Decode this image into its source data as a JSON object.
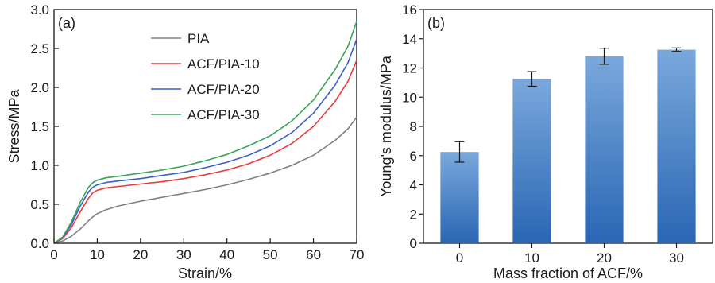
{
  "chart_data": [
    {
      "type": "line",
      "panel_label": "(a)",
      "title": "",
      "xlabel": "Strain/%",
      "ylabel": "Stress/MPa",
      "xlim": [
        0,
        70
      ],
      "ylim": [
        0,
        3.0
      ],
      "xticks": [
        0,
        10,
        20,
        30,
        40,
        50,
        60,
        70
      ],
      "yticks": [
        0.0,
        0.5,
        1.0,
        1.5,
        2.0,
        2.5,
        3.0
      ],
      "ytick_labels": [
        "0.0",
        "0.5",
        "1.0",
        "1.5",
        "2.0",
        "2.5",
        "3.0"
      ],
      "legend_position": "top-center",
      "grid": false,
      "series": [
        {
          "name": "PIA",
          "color": "#808080",
          "x": [
            0,
            2,
            4,
            6,
            8,
            9,
            10,
            12,
            15,
            20,
            25,
            30,
            35,
            40,
            45,
            50,
            55,
            60,
            65,
            68,
            70
          ],
          "y": [
            0,
            0.03,
            0.09,
            0.18,
            0.29,
            0.34,
            0.38,
            0.43,
            0.48,
            0.54,
            0.59,
            0.64,
            0.69,
            0.75,
            0.82,
            0.9,
            1.0,
            1.13,
            1.32,
            1.47,
            1.62
          ]
        },
        {
          "name": "ACF/PIA-10",
          "color": "#e83a3a",
          "x": [
            0,
            2,
            4,
            6,
            8,
            9,
            10,
            12,
            15,
            20,
            25,
            30,
            35,
            40,
            45,
            50,
            55,
            60,
            65,
            68,
            70
          ],
          "y": [
            0,
            0.06,
            0.2,
            0.4,
            0.58,
            0.65,
            0.68,
            0.71,
            0.73,
            0.76,
            0.79,
            0.83,
            0.88,
            0.94,
            1.02,
            1.13,
            1.28,
            1.5,
            1.82,
            2.08,
            2.35
          ]
        },
        {
          "name": "ACF/PIA-20",
          "color": "#3a5fc8",
          "x": [
            0,
            2,
            4,
            6,
            8,
            9,
            10,
            12,
            15,
            20,
            25,
            30,
            35,
            40,
            45,
            50,
            55,
            60,
            65,
            68,
            70
          ],
          "y": [
            0,
            0.07,
            0.24,
            0.47,
            0.66,
            0.72,
            0.75,
            0.78,
            0.8,
            0.83,
            0.87,
            0.91,
            0.97,
            1.04,
            1.13,
            1.25,
            1.42,
            1.67,
            2.03,
            2.32,
            2.62
          ]
        },
        {
          "name": "ACF/PIA-30",
          "color": "#3aa35a",
          "x": [
            0,
            2,
            4,
            6,
            8,
            9,
            10,
            12,
            15,
            20,
            25,
            30,
            35,
            40,
            45,
            50,
            55,
            60,
            65,
            68,
            70
          ],
          "y": [
            0,
            0.08,
            0.27,
            0.52,
            0.72,
            0.78,
            0.81,
            0.84,
            0.86,
            0.9,
            0.94,
            0.99,
            1.06,
            1.14,
            1.25,
            1.38,
            1.57,
            1.84,
            2.23,
            2.53,
            2.85
          ]
        }
      ]
    },
    {
      "type": "bar",
      "panel_label": "(b)",
      "title": "",
      "xlabel": "Mass fraction of ACF/%",
      "ylabel": "Young's modulus/MPa",
      "categories": [
        "0",
        "10",
        "20",
        "30"
      ],
      "values": [
        6.25,
        11.25,
        12.8,
        13.25
      ],
      "errors": [
        0.7,
        0.5,
        0.55,
        0.12
      ],
      "ylim": [
        0,
        16
      ],
      "yticks": [
        0,
        2,
        4,
        6,
        8,
        10,
        12,
        14,
        16
      ],
      "bar_color_top": "#7aa8dc",
      "bar_color_bottom": "#2a66b4",
      "grid": false
    }
  ]
}
